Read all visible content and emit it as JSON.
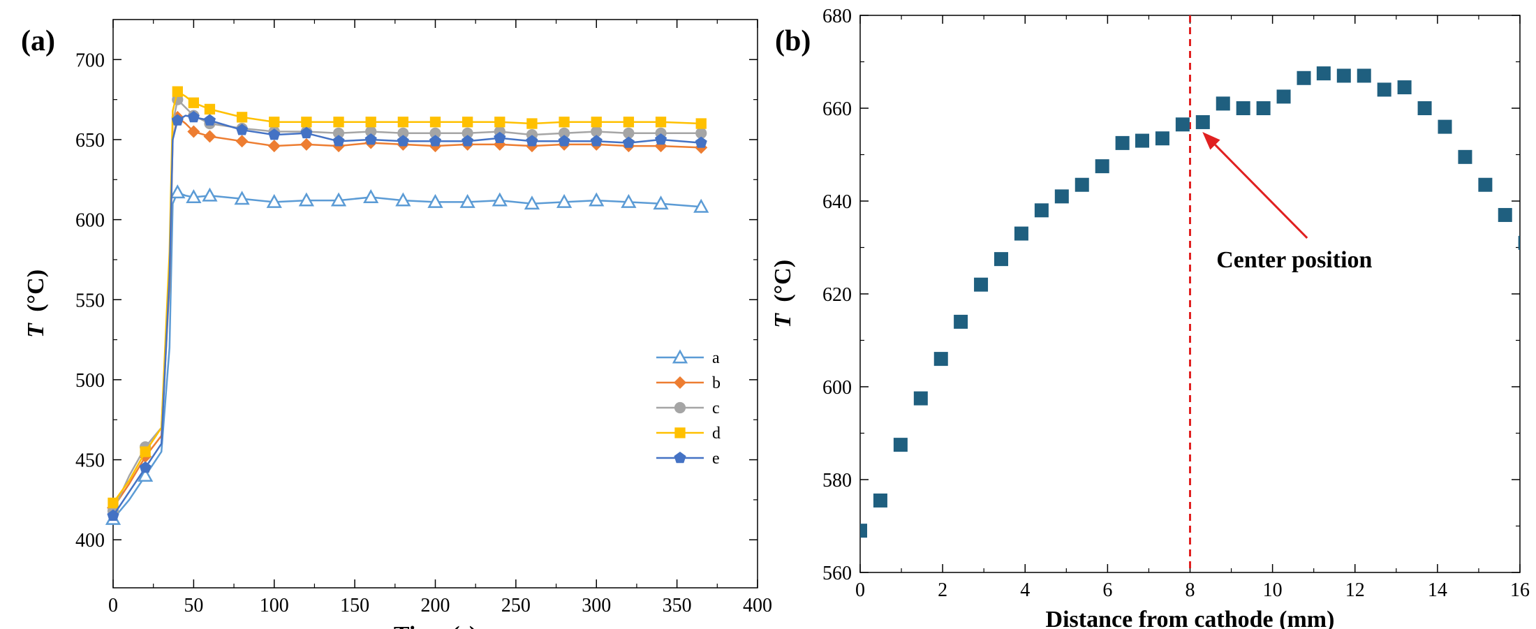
{
  "chart_data": [
    {
      "panel": "(a)",
      "type": "line",
      "title": "",
      "xlabel": "Time (s)",
      "ylabel_italic": "T",
      "ylabel_unit": "(°C)",
      "xlim": [
        0,
        400
      ],
      "ylim": [
        370,
        725
      ],
      "xticks": [
        0,
        50,
        100,
        150,
        200,
        250,
        300,
        350,
        400
      ],
      "yticks": [
        400,
        450,
        500,
        550,
        600,
        650,
        700
      ],
      "grid": false,
      "legend_position": "lower-right",
      "series": [
        {
          "name": "a",
          "color": "#5b9bd5",
          "marker": "triangle-open",
          "x": [
            0,
            10,
            20,
            30,
            35,
            37,
            40,
            45,
            50,
            60,
            80,
            100,
            120,
            140,
            160,
            180,
            200,
            220,
            240,
            260,
            280,
            300,
            320,
            340,
            365
          ],
          "y": [
            413,
            425,
            440,
            455,
            520,
            610,
            617,
            615,
            614,
            615,
            613,
            611,
            612,
            612,
            614,
            612,
            611,
            611,
            612,
            610,
            611,
            612,
            611,
            610,
            608
          ]
        },
        {
          "name": "b",
          "color": "#ed7d31",
          "marker": "diamond",
          "x": [
            0,
            10,
            20,
            30,
            35,
            37,
            40,
            45,
            50,
            60,
            80,
            100,
            120,
            140,
            160,
            180,
            200,
            220,
            240,
            260,
            280,
            300,
            320,
            340,
            365
          ],
          "y": [
            420,
            435,
            452,
            465,
            560,
            650,
            664,
            660,
            655,
            652,
            649,
            646,
            647,
            646,
            648,
            647,
            646,
            647,
            647,
            646,
            647,
            647,
            646,
            646,
            645
          ]
        },
        {
          "name": "c",
          "color": "#a5a5a5",
          "marker": "circle",
          "x": [
            0,
            10,
            20,
            30,
            35,
            37,
            40,
            45,
            50,
            60,
            80,
            100,
            120,
            140,
            160,
            180,
            200,
            220,
            240,
            260,
            280,
            300,
            320,
            340,
            365
          ],
          "y": [
            418,
            440,
            458,
            470,
            570,
            660,
            675,
            670,
            665,
            660,
            657,
            655,
            655,
            654,
            655,
            654,
            654,
            654,
            655,
            653,
            654,
            655,
            654,
            654,
            654
          ]
        },
        {
          "name": "d",
          "color": "#ffc000",
          "marker": "square",
          "x": [
            0,
            10,
            20,
            30,
            35,
            37,
            40,
            45,
            50,
            60,
            80,
            100,
            120,
            140,
            160,
            180,
            200,
            220,
            240,
            260,
            280,
            300,
            320,
            340,
            365
          ],
          "y": [
            423,
            437,
            455,
            470,
            580,
            668,
            680,
            677,
            673,
            669,
            664,
            661,
            661,
            661,
            661,
            661,
            661,
            661,
            661,
            660,
            661,
            661,
            661,
            661,
            660
          ]
        },
        {
          "name": "e",
          "color": "#4472c4",
          "marker": "pentagon",
          "x": [
            0,
            10,
            20,
            30,
            35,
            37,
            40,
            45,
            50,
            60,
            80,
            100,
            120,
            140,
            160,
            180,
            200,
            220,
            240,
            260,
            280,
            300,
            320,
            340,
            365
          ],
          "y": [
            415,
            430,
            445,
            460,
            565,
            650,
            662,
            665,
            664,
            662,
            656,
            653,
            654,
            649,
            650,
            649,
            649,
            649,
            651,
            649,
            649,
            649,
            648,
            650,
            648
          ]
        }
      ]
    },
    {
      "panel": "(b)",
      "type": "scatter",
      "title": "",
      "xlabel": "Distance from cathode (mm)",
      "ylabel_italic": "T",
      "ylabel_unit": "(°C)",
      "xlim": [
        0,
        16
      ],
      "ylim": [
        560,
        680
      ],
      "xticks": [
        0,
        2,
        4,
        6,
        8,
        10,
        12,
        14,
        16
      ],
      "yticks": [
        560,
        580,
        600,
        620,
        640,
        660,
        680
      ],
      "grid": false,
      "marker_color": "#1f5f7f",
      "x": [
        0,
        0.49,
        0.98,
        1.47,
        1.96,
        2.44,
        2.93,
        3.42,
        3.91,
        4.4,
        4.89,
        5.38,
        5.87,
        6.36,
        6.84,
        7.33,
        7.82,
        8.31,
        8.8,
        9.29,
        9.78,
        10.27,
        10.76,
        11.24,
        11.73,
        12.22,
        12.71,
        13.2,
        13.69,
        14.18,
        14.67,
        15.16,
        15.64,
        16.13
      ],
      "y": [
        569,
        575.5,
        587.5,
        597.5,
        606,
        614,
        622,
        627.5,
        633,
        638,
        641,
        643.5,
        647.5,
        652.5,
        653,
        653.5,
        656.5,
        657,
        661,
        660,
        660,
        662.5,
        666.5,
        667.5,
        667,
        667,
        664,
        664.5,
        660,
        656,
        649.5,
        643.5,
        637,
        631
      ],
      "reference_line": {
        "x": 8,
        "color": "#e02020",
        "style": "dashed"
      },
      "annotation": {
        "text": "Center position",
        "point_x": 8.3,
        "point_y": 657,
        "color": "#e02020"
      }
    }
  ]
}
